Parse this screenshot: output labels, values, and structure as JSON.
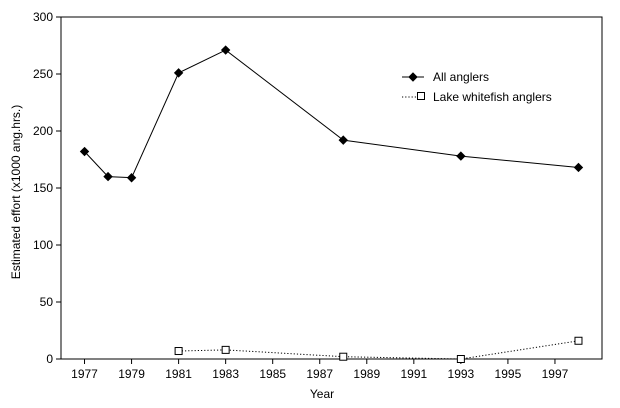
{
  "chart_data": {
    "type": "line",
    "xlabel": "Year",
    "ylabel": "Estimated effort (x1000 ang.hrs.)",
    "xlim": [
      1976,
      1999
    ],
    "ylim": [
      0,
      300
    ],
    "x_ticks": [
      "1977",
      "1979",
      "1981",
      "1983",
      "1985",
      "1987",
      "1989",
      "1991",
      "1993",
      "1995",
      "1997"
    ],
    "y_ticks": [
      "0",
      "50",
      "100",
      "150",
      "200",
      "250",
      "300"
    ],
    "legend_position": "top-right",
    "series": [
      {
        "name": "All anglers",
        "style": "solid",
        "marker": "filled-diamond",
        "color": "#000000",
        "points": [
          {
            "x": 1977,
            "y": 182
          },
          {
            "x": 1978,
            "y": 160
          },
          {
            "x": 1979,
            "y": 159
          },
          {
            "x": 1981,
            "y": 251
          },
          {
            "x": 1983,
            "y": 271
          },
          {
            "x": 1988,
            "y": 192
          },
          {
            "x": 1993,
            "y": 178
          },
          {
            "x": 1998,
            "y": 168
          }
        ]
      },
      {
        "name": "Lake whitefish anglers",
        "style": "dotted",
        "marker": "open-square",
        "color": "#000000",
        "points": [
          {
            "x": 1981,
            "y": 7
          },
          {
            "x": 1983,
            "y": 8
          },
          {
            "x": 1988,
            "y": 2
          },
          {
            "x": 1993,
            "y": 0
          },
          {
            "x": 1998,
            "y": 16
          }
        ]
      }
    ]
  }
}
